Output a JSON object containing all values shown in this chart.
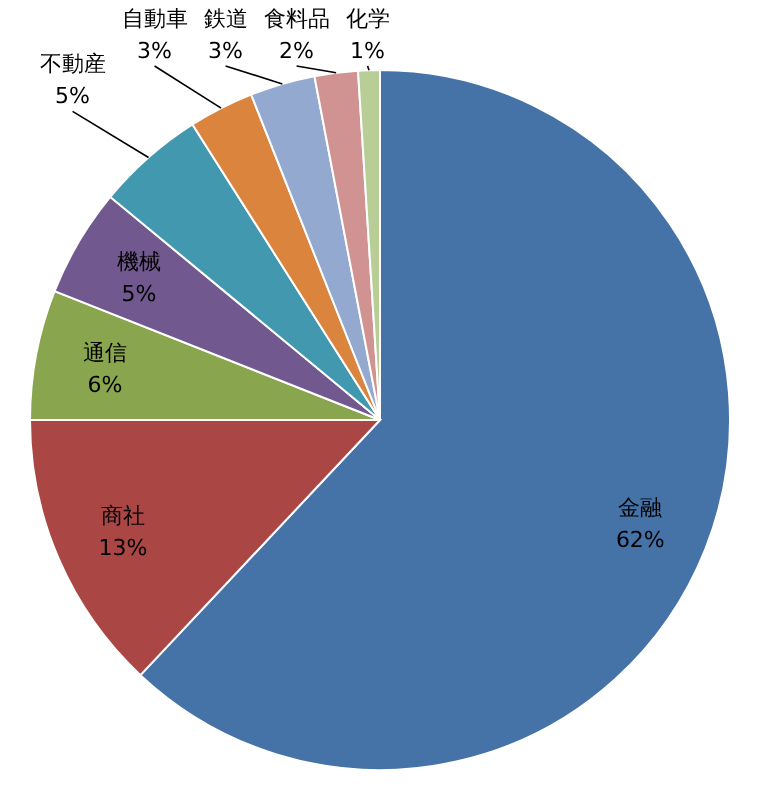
{
  "chart_data": {
    "type": "pie",
    "categories": [
      "金融",
      "商社",
      "通信",
      "機械",
      "不動産",
      "自動車",
      "鉄道",
      "食料品",
      "化学"
    ],
    "values": [
      62,
      13,
      6,
      5,
      5,
      3,
      3,
      2,
      1
    ],
    "colors": [
      "#4572a7",
      "#aa4643",
      "#89a54e",
      "#71588f",
      "#4198af",
      "#db843d",
      "#93a9cf",
      "#d19392",
      "#b9cd96"
    ],
    "value_labels": [
      "62%",
      "13%",
      "6%",
      "5%",
      "5%",
      "3%",
      "3%",
      "2%",
      "1%"
    ]
  }
}
